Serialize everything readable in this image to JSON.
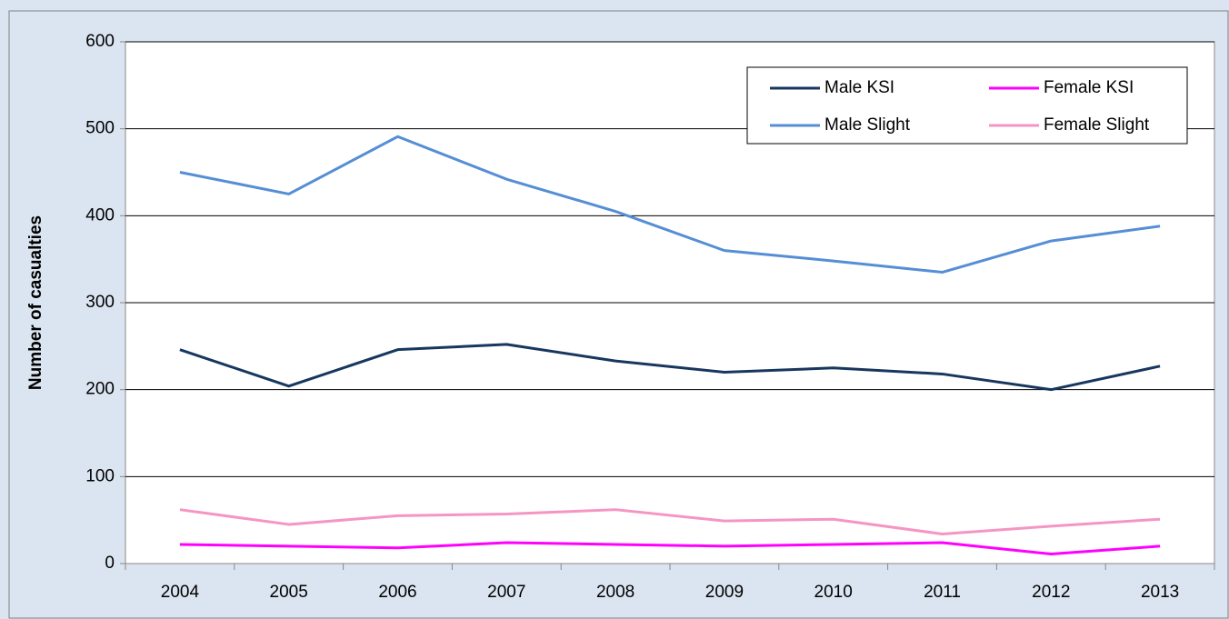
{
  "chart_data": {
    "type": "line",
    "y_label": "Number of casualties",
    "categories": [
      "2004",
      "2005",
      "2006",
      "2007",
      "2008",
      "2009",
      "2010",
      "2011",
      "2012",
      "2013"
    ],
    "series": [
      {
        "name": "Male KSI",
        "color": "#17375e",
        "values": [
          246,
          204,
          246,
          252,
          233,
          220,
          225,
          218,
          200,
          227
        ]
      },
      {
        "name": "Female KSI",
        "color": "#ff00ff",
        "values": [
          22,
          20,
          18,
          24,
          22,
          20,
          22,
          24,
          11,
          20
        ]
      },
      {
        "name": "Male Slight",
        "color": "#558ed5",
        "values": [
          450,
          425,
          491,
          442,
          405,
          360,
          348,
          335,
          371,
          388
        ]
      },
      {
        "name": "Female Slight",
        "color": "#f595c4",
        "values": [
          62,
          45,
          55,
          57,
          62,
          49,
          51,
          34,
          43,
          51
        ]
      }
    ],
    "ylim": [
      0,
      600
    ],
    "yticks": [
      0,
      100,
      200,
      300,
      400,
      500,
      600
    ],
    "grid": true,
    "legend": "top-right"
  }
}
